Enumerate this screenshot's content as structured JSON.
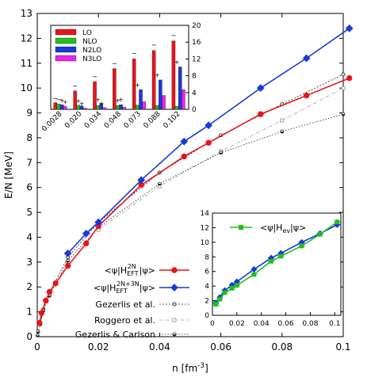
{
  "chart_data": [
    {
      "id": "main",
      "type": "line",
      "xlabel": "n [fm",
      "xlabel_exp": "-3",
      "xlabel_end": "]",
      "ylabel": "E/N [MeV]",
      "xlim": [
        0,
        0.1
      ],
      "ylim": [
        0,
        13
      ],
      "xticks": [
        0,
        0.02,
        0.04,
        0.06,
        0.08,
        0.1
      ],
      "xtick_labels": [
        "0",
        "0.02",
        "0.04",
        "0.06",
        "0.08",
        "0.1"
      ],
      "yticks": [
        0,
        1,
        2,
        3,
        4,
        5,
        6,
        7,
        8,
        9,
        10,
        11,
        12,
        13
      ],
      "ytick_labels": [
        "0",
        "1",
        "2",
        "3",
        "4",
        "5",
        "6",
        "7",
        "8",
        "9",
        "10",
        "11",
        "12",
        "13"
      ],
      "series": [
        {
          "key": "h2n",
          "name_pre": "<ψ|H",
          "name_sup": "2N",
          "name_sub": "EFT",
          "name_post": "|ψ>",
          "color": "#e8141c",
          "marker": "circle",
          "x": [
            0.0007,
            0.0014,
            0.0028,
            0.004,
            0.006,
            0.01,
            0.016,
            0.02,
            0.034,
            0.048,
            0.056,
            0.073,
            0.088,
            0.102
          ],
          "y": [
            0.55,
            0.95,
            1.45,
            1.8,
            2.15,
            2.85,
            3.75,
            4.45,
            6.1,
            7.25,
            7.8,
            8.95,
            9.7,
            10.4
          ]
        },
        {
          "key": "h3n",
          "name_pre": "<ψ|H",
          "name_sup": "2N+3N",
          "name_sub": "EFT",
          "name_post": "|ψ>",
          "color": "#1a3ad8",
          "marker": "diamond",
          "x": [
            0.01,
            0.016,
            0.02,
            0.034,
            0.048,
            0.056,
            0.073,
            0.088,
            0.102
          ],
          "y": [
            3.35,
            4.15,
            4.6,
            6.3,
            7.85,
            8.5,
            10.0,
            11.2,
            12.4
          ]
        },
        {
          "key": "gezerlis",
          "name": "Gezerlis et al.",
          "color": "#222222",
          "marker": "open-circle",
          "x": [
            0.001,
            0.002,
            0.004,
            0.01,
            0.02,
            0.04,
            0.06,
            0.08,
            0.1
          ],
          "y": [
            0.5,
            1.1,
            1.75,
            3.2,
            4.6,
            6.6,
            8.1,
            9.35,
            10.55
          ]
        },
        {
          "key": "roggero",
          "name": "Roggero et al.",
          "color": "#999999",
          "marker": "open-square",
          "x": [
            0.02,
            0.04,
            0.06,
            0.08,
            0.1
          ],
          "y": [
            4.3,
            6.05,
            7.45,
            8.7,
            10.0
          ]
        },
        {
          "key": "gc",
          "name": "Gezerlis & Carlson",
          "color": "#222222",
          "marker": "half-circle",
          "x": [
            0.0001,
            0.0003,
            0.001,
            0.002,
            0.004,
            0.006,
            0.01,
            0.02,
            0.04,
            0.06,
            0.08,
            0.1
          ],
          "y": [
            0.05,
            0.2,
            0.5,
            1.05,
            1.65,
            2.1,
            3.05,
            4.4,
            6.15,
            7.4,
            8.25,
            8.95
          ]
        }
      ]
    },
    {
      "id": "bar_inset",
      "type": "bar",
      "categories": [
        "0.0028",
        "0.020",
        "0.034",
        "0.048",
        "0.073",
        "0.088",
        "0.102"
      ],
      "ylim": [
        0,
        20
      ],
      "yticks": [
        0,
        4,
        8,
        12,
        16,
        20
      ],
      "ytick_labels": [
        "0",
        "4",
        "8",
        "12",
        "16",
        "20"
      ],
      "series": [
        {
          "name": "LO",
          "color": "#e8141c",
          "values": [
            1.6,
            4.4,
            6.6,
            9.7,
            12.0,
            14.0,
            16.3
          ]
        },
        {
          "name": "NLO",
          "color": "#22c020",
          "values": [
            1.3,
            1.0,
            0.9,
            0.9,
            1.0,
            0.9,
            0.7
          ]
        },
        {
          "name": "N2LO",
          "color": "#1a3ad8",
          "values": [
            1.1,
            0.8,
            1.3,
            1.1,
            4.7,
            7.0,
            10.1
          ]
        },
        {
          "name": "N3LO",
          "color": "#ee22ee",
          "values": [
            0.7,
            0.3,
            0.4,
            0.5,
            1.8,
            3.3,
            4.7
          ]
        }
      ],
      "marks": [
        {
          "cat": 0,
          "glyph": "−",
          "value": 1.9
        },
        {
          "cat": 0,
          "glyph": "−",
          "value": 1.6
        },
        {
          "cat": 0,
          "glyph": "+",
          "value": 1.4
        },
        {
          "cat": 0,
          "glyph": "+",
          "value": 1.0
        },
        {
          "cat": 1,
          "glyph": "−",
          "value": 4.9
        },
        {
          "cat": 1,
          "glyph": "+",
          "value": 1.3
        },
        {
          "cat": 1,
          "glyph": "+",
          "value": 0.7
        },
        {
          "cat": 2,
          "glyph": "−",
          "value": 7.1
        },
        {
          "cat": 2,
          "glyph": "+",
          "value": 1.6
        },
        {
          "cat": 2,
          "glyph": "+",
          "value": 0.8
        },
        {
          "cat": 3,
          "glyph": "−",
          "value": 10.2
        },
        {
          "cat": 3,
          "glyph": "+",
          "value": 1.4
        },
        {
          "cat": 3,
          "glyph": "+",
          "value": 1.6
        },
        {
          "cat": 4,
          "glyph": "−",
          "value": 12.6
        },
        {
          "cat": 4,
          "glyph": "+",
          "value": 5.1
        },
        {
          "cat": 5,
          "glyph": "−",
          "value": 14.6
        },
        {
          "cat": 5,
          "glyph": "+",
          "value": 7.5
        },
        {
          "cat": 6,
          "glyph": "−",
          "value": 16.9
        },
        {
          "cat": 6,
          "glyph": "+",
          "value": 10.6
        }
      ]
    },
    {
      "id": "hev_inset",
      "type": "line",
      "xlim": [
        0,
        0.105
      ],
      "ylim": [
        0,
        14
      ],
      "xticks": [
        0,
        0.02,
        0.04,
        0.06,
        0.08,
        0.1
      ],
      "xtick_labels": [
        "0",
        "0.02",
        "0.04",
        "0.06",
        "0.08",
        "0.1"
      ],
      "yticks": [
        0,
        2,
        4,
        6,
        8,
        10,
        12,
        14
      ],
      "ytick_labels": [
        "0",
        "2",
        "4",
        "6",
        "8",
        "10",
        "12",
        "14"
      ],
      "series": [
        {
          "key": "blue_ref",
          "name": "",
          "color": "#1a3ad8",
          "marker": "diamond",
          "x": [
            0.0028,
            0.006,
            0.01,
            0.016,
            0.02,
            0.034,
            0.048,
            0.056,
            0.073,
            0.088,
            0.102
          ],
          "y": [
            1.7,
            2.45,
            3.4,
            4.15,
            4.6,
            6.3,
            7.85,
            8.5,
            10.0,
            11.2,
            12.4
          ]
        },
        {
          "key": "hev",
          "name": "<ψ|H",
          "name_sub": "ev",
          "name_post": "|ψ>",
          "color": "#22c020",
          "marker": "square",
          "x": [
            0.0028,
            0.006,
            0.01,
            0.016,
            0.02,
            0.034,
            0.048,
            0.056,
            0.073,
            0.088,
            0.102
          ],
          "y": [
            1.5,
            2.2,
            3.1,
            3.7,
            4.1,
            5.6,
            7.4,
            8.1,
            9.5,
            11.1,
            12.8
          ]
        }
      ]
    }
  ]
}
